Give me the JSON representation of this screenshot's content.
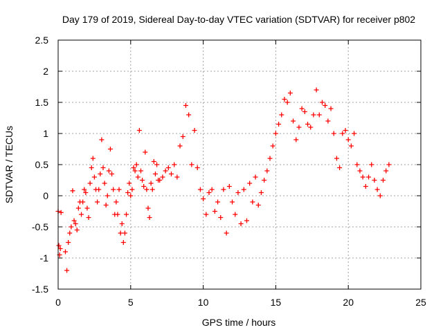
{
  "chart_data": {
    "type": "scatter",
    "title": "Day 179 of 2019, Sidereal Day-to-day VTEC variation (SDTVAR) for receiver p802",
    "xlabel": "GPS time / hours",
    "ylabel": "SDTVAR / TECUs",
    "xlim": [
      0,
      25
    ],
    "ylim": [
      -1.5,
      2.5
    ],
    "xticks": [
      0,
      5,
      10,
      15,
      20,
      25
    ],
    "yticks": [
      -1.5,
      -1,
      -0.5,
      0,
      0.5,
      1,
      1.5,
      2,
      2.5
    ],
    "xtick_labels": [
      "0",
      "5",
      "10",
      "15",
      "20",
      "25"
    ],
    "ytick_labels": [
      "-1.5",
      "-1",
      "-0.5",
      "0",
      "0.5",
      "1",
      "1.5",
      "2",
      "2.5"
    ],
    "grid": true,
    "marker": "+",
    "color": "#ff0000",
    "series": [
      {
        "name": "SDTVAR",
        "x": [
          0.0,
          0.05,
          0.1,
          0.15,
          0.2,
          0.5,
          0.6,
          0.7,
          0.8,
          0.9,
          1.0,
          1.1,
          1.2,
          1.3,
          1.4,
          1.5,
          1.6,
          1.7,
          1.8,
          1.9,
          2.0,
          2.1,
          2.2,
          2.3,
          2.4,
          2.5,
          2.6,
          2.7,
          2.8,
          2.9,
          3.0,
          3.1,
          3.2,
          3.3,
          3.4,
          3.5,
          3.6,
          3.7,
          3.8,
          3.9,
          4.0,
          4.1,
          4.2,
          4.3,
          4.4,
          4.5,
          4.6,
          4.7,
          4.8,
          4.9,
          5.0,
          5.1,
          5.2,
          5.3,
          5.4,
          5.5,
          5.6,
          5.7,
          5.8,
          5.9,
          6.0,
          6.1,
          6.2,
          6.3,
          6.4,
          6.5,
          6.6,
          6.7,
          6.8,
          6.9,
          7.0,
          7.2,
          7.4,
          7.6,
          7.8,
          8.0,
          8.2,
          8.4,
          8.6,
          8.8,
          9.0,
          9.2,
          9.4,
          9.6,
          9.8,
          10.0,
          10.2,
          10.4,
          10.6,
          10.8,
          11.0,
          11.2,
          11.4,
          11.6,
          11.8,
          12.0,
          12.2,
          12.4,
          12.6,
          12.8,
          13.0,
          13.2,
          13.4,
          13.6,
          13.8,
          14.0,
          14.2,
          14.4,
          14.6,
          14.8,
          15.0,
          15.2,
          15.4,
          15.6,
          15.8,
          16.0,
          16.2,
          16.4,
          16.6,
          16.8,
          17.0,
          17.2,
          17.4,
          17.6,
          17.8,
          18.0,
          18.2,
          18.4,
          18.6,
          18.8,
          19.0,
          19.2,
          19.4,
          19.6,
          19.8,
          20.0,
          20.2,
          20.4,
          20.6,
          20.8,
          21.0,
          21.2,
          21.4,
          21.6,
          21.8,
          22.0,
          22.2,
          22.4,
          22.6,
          22.8
        ],
        "y": [
          -0.25,
          -0.8,
          -0.95,
          -0.85,
          -0.27,
          -0.9,
          -1.2,
          -0.75,
          -0.6,
          -0.5,
          0.08,
          -0.4,
          -0.45,
          -0.55,
          -0.2,
          -0.1,
          -0.3,
          -0.1,
          0.1,
          0.05,
          -0.2,
          -0.35,
          0.2,
          0.45,
          0.6,
          0.3,
          0.1,
          -0.1,
          0.1,
          0.35,
          0.9,
          0.45,
          0.2,
          -0.15,
          0.0,
          0.4,
          0.75,
          0.35,
          0.1,
          -0.3,
          -0.1,
          -0.3,
          0.1,
          -0.6,
          -0.45,
          -0.75,
          -0.6,
          -0.3,
          0.05,
          0.2,
          0.0,
          0.1,
          0.45,
          0.4,
          0.5,
          0.3,
          1.05,
          0.4,
          0.25,
          0.15,
          0.7,
          0.1,
          -0.2,
          -0.35,
          0.2,
          0.1,
          0.55,
          0.35,
          0.5,
          0.25,
          0.25,
          0.3,
          0.4,
          0.45,
          0.35,
          0.5,
          0.3,
          0.8,
          0.95,
          1.45,
          1.3,
          0.5,
          1.05,
          0.45,
          0.1,
          -0.05,
          -0.3,
          0.05,
          0.1,
          -0.25,
          -0.1,
          -0.35,
          0.1,
          -0.6,
          0.15,
          -0.1,
          -0.3,
          0.05,
          -0.45,
          0.1,
          -0.4,
          0.2,
          -0.1,
          0.3,
          -0.15,
          0.05,
          0.25,
          0.4,
          0.6,
          0.8,
          1.0,
          1.15,
          1.3,
          1.55,
          1.5,
          1.65,
          1.2,
          0.9,
          1.1,
          1.4,
          1.35,
          1.15,
          1.1,
          1.3,
          1.7,
          1.3,
          1.5,
          1.45,
          1.2,
          1.4,
          1.0,
          0.6,
          0.45,
          1.0,
          1.05,
          0.9,
          0.8,
          1.0,
          0.5,
          0.4,
          0.3,
          0.15,
          0.3,
          0.5,
          0.25,
          0.1,
          0.0,
          0.25,
          0.4,
          0.5
        ]
      }
    ]
  }
}
